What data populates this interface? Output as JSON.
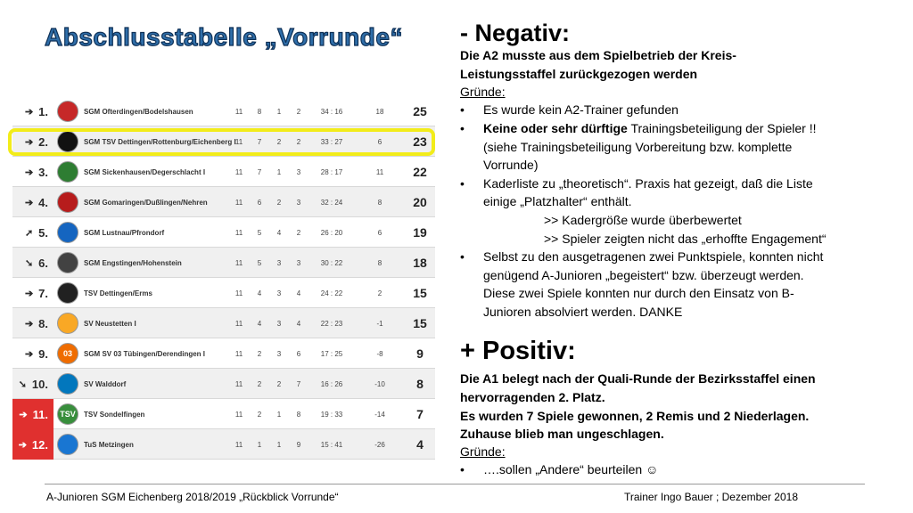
{
  "title": "Abschlusstabelle „Vorrunde“",
  "table": {
    "rows": [
      {
        "arrow": "➔",
        "rank": "1.",
        "team": "SGM Ofterdingen/Bodelshausen",
        "sp": "11",
        "g": "8",
        "u": "1",
        "v": "2",
        "goals": "34 : 16",
        "diff": "18",
        "pts": "25",
        "red": false,
        "logo_color": "#c62828",
        "logo_text": ""
      },
      {
        "arrow": "➔",
        "rank": "2.",
        "team": "SGM TSV Dettingen/Rottenburg/Eichenberg I",
        "sp": "11",
        "g": "7",
        "u": "2",
        "v": "2",
        "goals": "33 : 27",
        "diff": "6",
        "pts": "23",
        "red": false,
        "logo_color": "#111111",
        "logo_text": ""
      },
      {
        "arrow": "➔",
        "rank": "3.",
        "team": "SGM Sickenhausen/Degerschlacht I",
        "sp": "11",
        "g": "7",
        "u": "1",
        "v": "3",
        "goals": "28 : 17",
        "diff": "11",
        "pts": "22",
        "red": false,
        "logo_color": "#2e7d32",
        "logo_text": ""
      },
      {
        "arrow": "➔",
        "rank": "4.",
        "team": "SGM Gomaringen/Dußlingen/Nehren",
        "sp": "11",
        "g": "6",
        "u": "2",
        "v": "3",
        "goals": "32 : 24",
        "diff": "8",
        "pts": "20",
        "red": false,
        "logo_color": "#b71c1c",
        "logo_text": ""
      },
      {
        "arrow": "➚",
        "rank": "5.",
        "team": "SGM Lustnau/Pfrondorf",
        "sp": "11",
        "g": "5",
        "u": "4",
        "v": "2",
        "goals": "26 : 20",
        "diff": "6",
        "pts": "19",
        "red": false,
        "logo_color": "#1565c0",
        "logo_text": ""
      },
      {
        "arrow": "➘",
        "rank": "6.",
        "team": "SGM Engstingen/Hohenstein",
        "sp": "11",
        "g": "5",
        "u": "3",
        "v": "3",
        "goals": "30 : 22",
        "diff": "8",
        "pts": "18",
        "red": false,
        "logo_color": "#424242",
        "logo_text": ""
      },
      {
        "arrow": "➔",
        "rank": "7.",
        "team": "TSV Dettingen/Erms",
        "sp": "11",
        "g": "4",
        "u": "3",
        "v": "4",
        "goals": "24 : 22",
        "diff": "2",
        "pts": "15",
        "red": false,
        "logo_color": "#212121",
        "logo_text": ""
      },
      {
        "arrow": "➔",
        "rank": "8.",
        "team": "SV Neustetten I",
        "sp": "11",
        "g": "4",
        "u": "3",
        "v": "4",
        "goals": "22 : 23",
        "diff": "-1",
        "pts": "15",
        "red": false,
        "logo_color": "#f9a825",
        "logo_text": ""
      },
      {
        "arrow": "➔",
        "rank": "9.",
        "team": "SGM SV 03 Tübingen/Derendingen I",
        "sp": "11",
        "g": "2",
        "u": "3",
        "v": "6",
        "goals": "17 : 25",
        "diff": "-8",
        "pts": "9",
        "red": false,
        "logo_color": "#ef6c00",
        "logo_text": "03"
      },
      {
        "arrow": "➘",
        "rank": "10.",
        "team": "SV Walddorf",
        "sp": "11",
        "g": "2",
        "u": "2",
        "v": "7",
        "goals": "16 : 26",
        "diff": "-10",
        "pts": "8",
        "red": false,
        "logo_color": "#0277bd",
        "logo_text": ""
      },
      {
        "arrow": "➔",
        "rank": "11.",
        "team": "TSV Sondelfingen",
        "sp": "11",
        "g": "2",
        "u": "1",
        "v": "8",
        "goals": "19 : 33",
        "diff": "-14",
        "pts": "7",
        "red": true,
        "logo_color": "#388e3c",
        "logo_text": "TSV"
      },
      {
        "arrow": "➔",
        "rank": "12.",
        "team": "TuS Metzingen",
        "sp": "11",
        "g": "1",
        "u": "1",
        "v": "9",
        "goals": "15 : 41",
        "diff": "-26",
        "pts": "4",
        "red": true,
        "logo_color": "#1976d2",
        "logo_text": ""
      }
    ]
  },
  "negative": {
    "heading": "- Negativ:",
    "line1": "Die A2 musste aus dem Spielbetrieb der Kreis-",
    "line2": "Leistungsstaffel zurückgezogen werden",
    "reasons_label": "Gründe:",
    "b1": "Es wurde kein A2-Trainer gefunden",
    "b2_bold": "Keine oder sehr dürftige",
    "b2_rest": " Trainingsbeteiligung der Spieler !!",
    "b2_l2": "(siehe Trainingsbeteiligung Vorbereitung bzw. komplette",
    "b2_l3": "Vorrunde)",
    "b3_l1": "Kaderliste zu „theoretisch“. Praxis hat gezeigt, daß die Liste",
    "b3_l2": "einige „Platzhalter“ enthält.",
    "sub1": ">> Kadergröße wurde überbewertet",
    "sub2": ">> Spieler zeigten nicht das „erhoffte Engagement“",
    "b4_l1": "Selbst zu den ausgetragenen zwei Punktspiele, konnten nicht",
    "b4_l2": "genügend A-Junioren „begeistert“ bzw. überzeugt werden.",
    "b4_l3": "Diese zwei Spiele konnten nur durch den Einsatz von B-",
    "b4_l4": "Junioren absolviert werden. DANKE"
  },
  "positive": {
    "heading": "+ Positiv:",
    "l1": "Die A1 belegt nach der Quali-Runde der Bezirksstaffel einen",
    "l2": "hervorragenden 2. Platz.",
    "l3": "Es wurden 7 Spiele gewonnen, 2 Remis und 2 Niederlagen.",
    "l4": "Zuhause blieb man ungeschlagen.",
    "reasons_label": "Gründe:",
    "b1": "….sollen „Andere“ beurteilen ☺"
  },
  "bullet_char": "•",
  "footer": {
    "left": "A-Junioren SGM Eichenberg 2018/2019 „Rückblick Vorrunde“",
    "right": "Trainer Ingo Bauer ; Dezember 2018"
  }
}
